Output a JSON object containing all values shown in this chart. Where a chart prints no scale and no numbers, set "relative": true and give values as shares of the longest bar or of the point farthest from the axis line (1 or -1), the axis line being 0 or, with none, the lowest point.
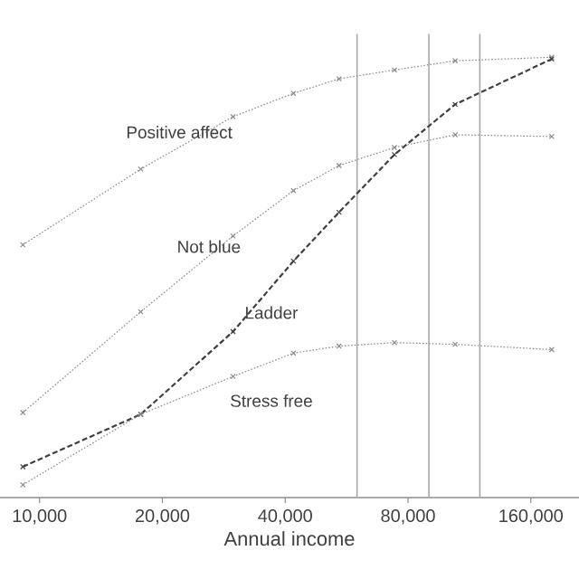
{
  "chart_data": {
    "type": "line",
    "xlabel": "Annual income",
    "log": "x",
    "relative": true,
    "marker": "cross",
    "legend": false,
    "grid": false,
    "xlim": [
      8000,
      210000
    ],
    "xticks": [
      {
        "value": 10000,
        "label": "10,000"
      },
      {
        "value": 20000,
        "label": "20,000"
      },
      {
        "value": 40000,
        "label": "40,000"
      },
      {
        "value": 80000,
        "label": "80,000"
      },
      {
        "value": 160000,
        "label": "160,000"
      }
    ],
    "x": [
      9100,
      17700,
      29800,
      41900,
      54200,
      74100,
      104400,
      180000
    ],
    "series": [
      {
        "name": "Positive affect",
        "color": "#8a8a8a",
        "line_style": "dotted",
        "values": [
          0.574,
          0.746,
          0.865,
          0.918,
          0.951,
          0.971,
          0.992,
          1.0
        ]
      },
      {
        "name": "Not blue",
        "color": "#8a8a8a",
        "line_style": "dotted",
        "values": [
          0.193,
          0.422,
          0.594,
          0.697,
          0.754,
          0.795,
          0.824,
          0.82
        ]
      },
      {
        "name": "Ladder",
        "color": "#404040",
        "line_style": "dashed",
        "values": [
          0.07,
          0.189,
          0.377,
          0.537,
          0.648,
          0.779,
          0.893,
          0.996
        ]
      },
      {
        "name": "Stress free",
        "color": "#8a8a8a",
        "line_style": "dotted",
        "values": [
          0.029,
          0.189,
          0.275,
          0.328,
          0.344,
          0.352,
          0.348,
          0.336
        ]
      }
    ],
    "ref_lines": [
      {
        "axis": "x",
        "value": 60000,
        "color": "#a8a8a8"
      },
      {
        "axis": "x",
        "value": 90000,
        "color": "#a8a8a8"
      },
      {
        "axis": "x",
        "value": 120000,
        "color": "#a8a8a8"
      }
    ]
  }
}
